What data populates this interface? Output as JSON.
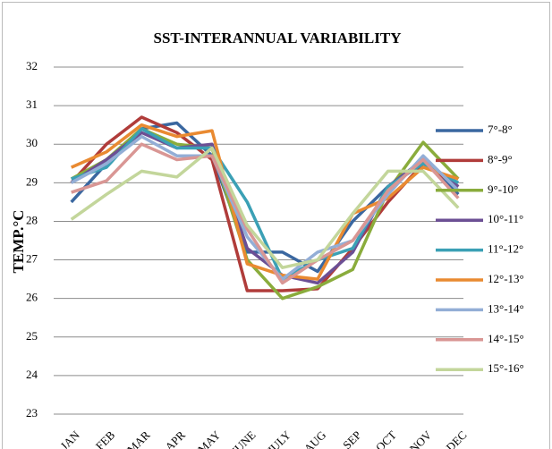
{
  "chart_data": {
    "type": "line",
    "title": "SST-INTERANNUAL VARIABILITY",
    "y_label": "TEMP.°C",
    "categories": [
      "JAN",
      "FEB",
      "MAR",
      "APR",
      "MAY",
      "JUNE",
      "JULY",
      "AUG",
      "SEP",
      "OCT",
      "NOV",
      "DEC"
    ],
    "ylim": [
      23,
      32
    ],
    "yticks": [
      23,
      24,
      25,
      26,
      27,
      28,
      29,
      30,
      31,
      32
    ],
    "grid": true,
    "legend": "right",
    "series": [
      {
        "name": "7°-8°",
        "color": "#3a67a0",
        "values": [
          28.5,
          29.5,
          30.4,
          30.55,
          29.7,
          27.2,
          27.2,
          26.7,
          28.0,
          28.9,
          29.6,
          28.7
        ]
      },
      {
        "name": "8°-9°",
        "color": "#b03c3a",
        "values": [
          29.0,
          30.0,
          30.7,
          30.3,
          29.6,
          26.2,
          26.2,
          26.25,
          27.3,
          28.5,
          29.5,
          28.9
        ]
      },
      {
        "name": "9°-10°",
        "color": "#8aac3c",
        "values": [
          29.1,
          29.6,
          30.4,
          30.0,
          29.9,
          27.0,
          26.0,
          26.3,
          26.75,
          28.8,
          30.05,
          29.1
        ]
      },
      {
        "name": "10°-11°",
        "color": "#6c4f94",
        "values": [
          29.0,
          29.6,
          30.3,
          29.9,
          30.0,
          27.3,
          26.6,
          26.4,
          27.2,
          28.9,
          29.6,
          28.9
        ]
      },
      {
        "name": "11°-12°",
        "color": "#3ba0b5",
        "values": [
          29.1,
          29.4,
          30.4,
          29.9,
          29.9,
          28.5,
          26.5,
          27.0,
          27.3,
          28.9,
          29.5,
          29.0
        ]
      },
      {
        "name": "12°-13°",
        "color": "#e98a31",
        "values": [
          29.4,
          29.8,
          30.5,
          30.2,
          30.35,
          26.9,
          26.6,
          26.5,
          28.2,
          28.6,
          29.4,
          29.1
        ]
      },
      {
        "name": "13°-14°",
        "color": "#93aed6",
        "values": [
          29.0,
          29.5,
          30.2,
          29.7,
          29.7,
          27.6,
          26.5,
          27.2,
          27.5,
          28.7,
          29.7,
          28.8
        ]
      },
      {
        "name": "14°-15°",
        "color": "#d99694",
        "values": [
          28.75,
          29.05,
          30.0,
          29.6,
          29.7,
          27.8,
          26.4,
          27.0,
          27.5,
          28.8,
          29.6,
          28.6
        ]
      },
      {
        "name": "15°-16°",
        "color": "#c3d69b",
        "values": [
          28.05,
          28.7,
          29.3,
          29.15,
          29.9,
          27.9,
          26.8,
          27.0,
          28.2,
          29.3,
          29.3,
          28.35
        ]
      }
    ]
  }
}
